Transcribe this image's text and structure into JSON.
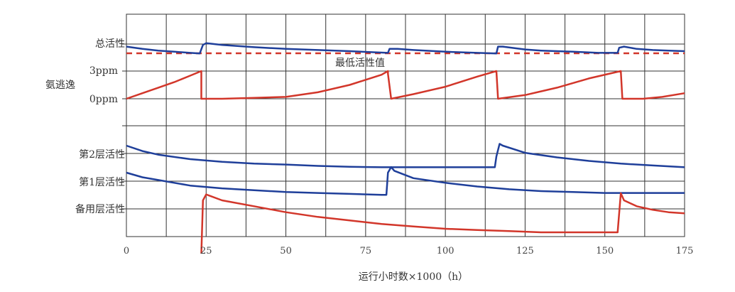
{
  "chart_data": {
    "type": "line",
    "xlabel": "运行小时数×1000（h）",
    "x_ticks": [
      0,
      25,
      50,
      75,
      100,
      125,
      150,
      175
    ],
    "xlim": [
      0,
      175
    ],
    "row_labels": {
      "total_activity": "总活性",
      "ammonia_slip": "氨逃逸",
      "ammonia_max": "3ppm",
      "ammonia_zero": "0ppm",
      "layer2": "第2层活性",
      "layer1": "第1层活性",
      "spare_layer": "备用层活性"
    },
    "annotation": "最低活性值",
    "colors": {
      "blue": "#1f3f9a",
      "red": "#d2362a",
      "grid": "#333333"
    },
    "series": [
      {
        "key": "total_activity",
        "color": "blue",
        "points": [
          [
            0,
            1.3
          ],
          [
            5,
            0.9
          ],
          [
            10,
            0.6
          ],
          [
            15,
            0.4
          ],
          [
            20,
            0.2
          ],
          [
            23,
            0.1
          ],
          [
            24,
            1.6
          ],
          [
            25,
            1.9
          ],
          [
            30,
            1.6
          ],
          [
            40,
            1.2
          ],
          [
            50,
            0.9
          ],
          [
            60,
            0.7
          ],
          [
            70,
            0.5
          ],
          [
            78,
            0.3
          ],
          [
            82,
            0.2
          ],
          [
            82.5,
            0.9
          ],
          [
            85,
            0.9
          ],
          [
            90,
            0.7
          ],
          [
            100,
            0.4
          ],
          [
            110,
            0.2
          ],
          [
            116,
            0.1
          ],
          [
            116.5,
            1.3
          ],
          [
            118,
            1.3
          ],
          [
            125,
            0.8
          ],
          [
            130,
            0.6
          ],
          [
            140,
            0.4
          ],
          [
            148,
            0.2
          ],
          [
            154,
            0.2
          ],
          [
            154.5,
            1.1
          ],
          [
            156,
            1.3
          ],
          [
            160,
            0.9
          ],
          [
            165,
            0.7
          ],
          [
            170,
            0.6
          ],
          [
            175,
            0.5
          ]
        ]
      },
      {
        "key": "ammonia_slip",
        "color": "red",
        "points": [
          [
            0,
            0
          ],
          [
            5,
            0.6
          ],
          [
            10,
            1.2
          ],
          [
            15,
            1.8
          ],
          [
            20,
            2.5
          ],
          [
            23.5,
            3
          ],
          [
            23.5,
            0
          ],
          [
            30,
            0
          ],
          [
            40,
            0.1
          ],
          [
            50,
            0.2
          ],
          [
            60,
            0.7
          ],
          [
            70,
            1.5
          ],
          [
            80,
            2.6
          ],
          [
            82,
            3
          ],
          [
            82,
            2.7
          ],
          [
            83,
            0
          ],
          [
            90,
            0.5
          ],
          [
            100,
            1.3
          ],
          [
            110,
            2.4
          ],
          [
            116,
            3
          ],
          [
            116.5,
            0
          ],
          [
            125,
            0.4
          ],
          [
            135,
            1.2
          ],
          [
            145,
            2.2
          ],
          [
            155,
            3
          ],
          [
            155.5,
            0
          ],
          [
            162,
            0
          ],
          [
            168,
            0.2
          ],
          [
            175,
            0.6
          ]
        ]
      },
      {
        "key": "layer2",
        "color": "blue",
        "points": [
          [
            0,
            3
          ],
          [
            5,
            2.4
          ],
          [
            10,
            2
          ],
          [
            20,
            1.5
          ],
          [
            30,
            1.2
          ],
          [
            40,
            1
          ],
          [
            50,
            0.9
          ],
          [
            60,
            0.75
          ],
          [
            70,
            0.65
          ],
          [
            80,
            0.6
          ],
          [
            90,
            0.6
          ],
          [
            100,
            0.6
          ],
          [
            110,
            0.6
          ],
          [
            115.5,
            0.6
          ],
          [
            116,
            1.8
          ],
          [
            117,
            3.2
          ],
          [
            118,
            3
          ],
          [
            125,
            2.2
          ],
          [
            135,
            1.7
          ],
          [
            145,
            1.3
          ],
          [
            155,
            1
          ],
          [
            165,
            0.8
          ],
          [
            175,
            0.6
          ]
        ]
      },
      {
        "key": "layer1",
        "color": "blue",
        "points": [
          [
            0,
            3
          ],
          [
            5,
            2.5
          ],
          [
            10,
            2.2
          ],
          [
            20,
            1.6
          ],
          [
            30,
            1.3
          ],
          [
            40,
            1.1
          ],
          [
            50,
            0.9
          ],
          [
            60,
            0.8
          ],
          [
            70,
            0.7
          ],
          [
            80,
            0.6
          ],
          [
            81.5,
            0.6
          ],
          [
            82,
            3
          ],
          [
            83,
            3.6
          ],
          [
            84,
            3.2
          ],
          [
            90,
            2.4
          ],
          [
            100,
            1.9
          ],
          [
            110,
            1.5
          ],
          [
            120,
            1.2
          ],
          [
            130,
            1
          ],
          [
            140,
            0.9
          ],
          [
            150,
            0.8
          ],
          [
            160,
            0.8
          ],
          [
            175,
            0.8
          ]
        ]
      },
      {
        "key": "spare_layer",
        "color": "red",
        "points": [
          [
            23.5,
            -1.5
          ],
          [
            24,
            3
          ],
          [
            25,
            3.5
          ],
          [
            30,
            3
          ],
          [
            40,
            2.5
          ],
          [
            50,
            2
          ],
          [
            60,
            1.6
          ],
          [
            70,
            1.3
          ],
          [
            80,
            1.0
          ],
          [
            90,
            0.8
          ],
          [
            100,
            0.6
          ],
          [
            110,
            0.5
          ],
          [
            120,
            0.4
          ],
          [
            130,
            0.3
          ],
          [
            140,
            0.3
          ],
          [
            150,
            0.3
          ],
          [
            154,
            0.3
          ],
          [
            155,
            3.6
          ],
          [
            156,
            3
          ],
          [
            160,
            2.5
          ],
          [
            165,
            2.2
          ],
          [
            170,
            2
          ],
          [
            175,
            1.9
          ]
        ]
      }
    ],
    "min_activity_line": {
      "color": "red",
      "style": "dashed"
    }
  }
}
